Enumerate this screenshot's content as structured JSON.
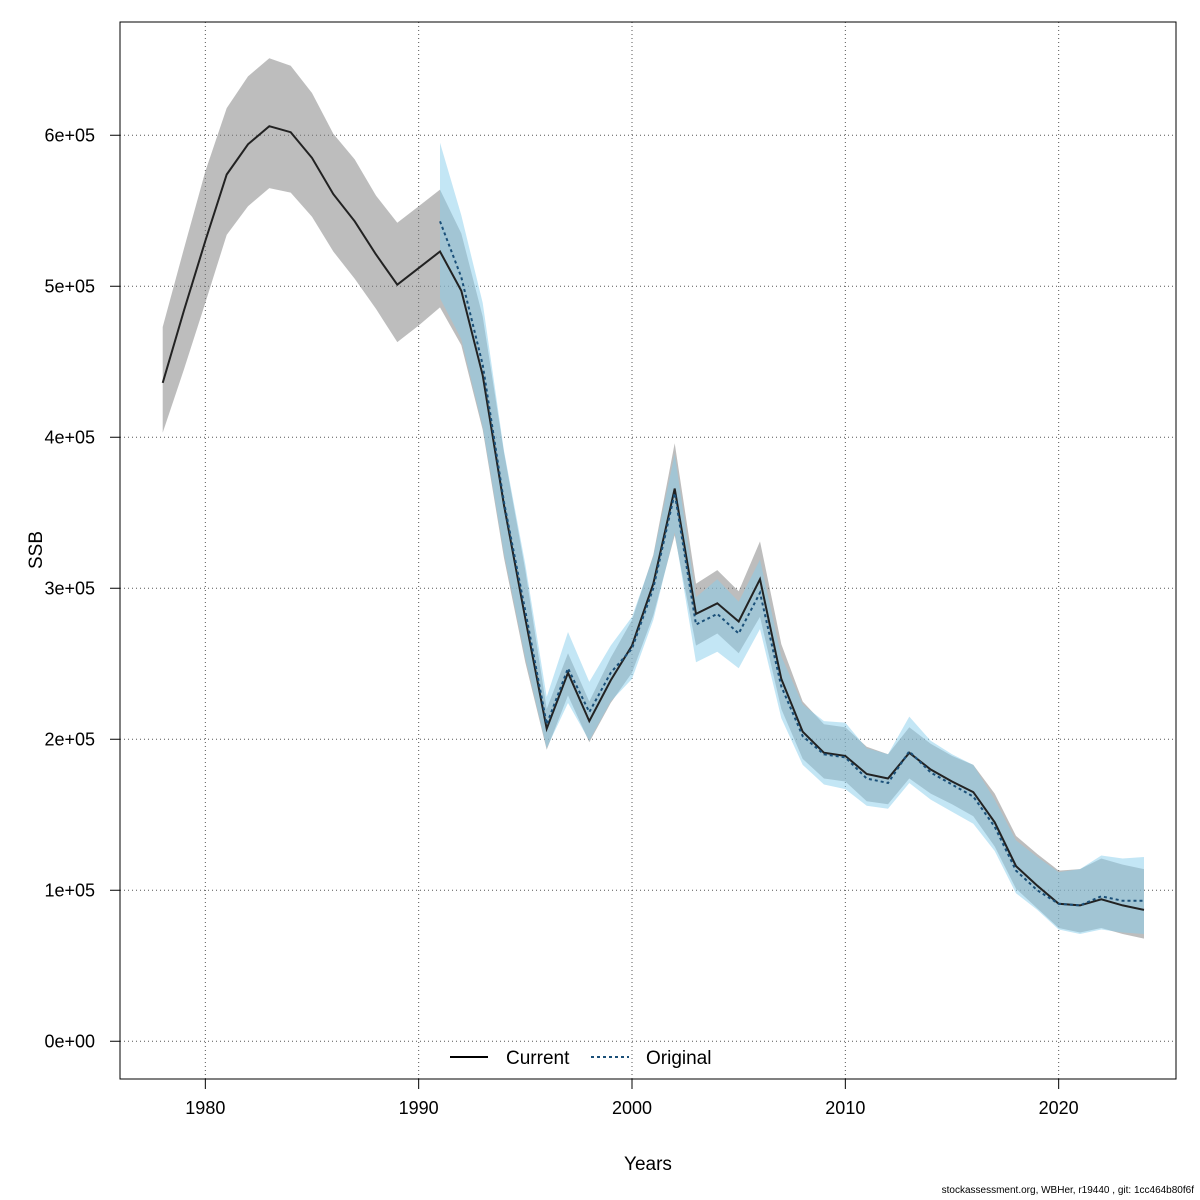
{
  "chart_data": {
    "type": "line",
    "xlabel": "Years",
    "ylabel": "SSB",
    "xlim": [
      1976,
      2025.5
    ],
    "ylim": [
      -25000,
      675000
    ],
    "x_ticks": [
      1980,
      1990,
      2000,
      2010,
      2020
    ],
    "y_ticks": [
      0,
      100000,
      200000,
      300000,
      400000,
      500000,
      600000
    ],
    "y_tick_labels": [
      "0e+00",
      "1e+05",
      "2e+05",
      "3e+05",
      "4e+05",
      "5e+05",
      "6e+05"
    ],
    "grid": true,
    "legend": {
      "position": "bottom-center",
      "entries": [
        "Current",
        "Original"
      ]
    },
    "colors": {
      "current_line": "#000000",
      "current_band": "#808080",
      "original_line": "#1a4f78",
      "original_band": "#87ceeb"
    },
    "series": [
      {
        "name": "Current",
        "style": "solid",
        "x": [
          1978,
          1979,
          1980,
          1981,
          1982,
          1983,
          1984,
          1985,
          1986,
          1987,
          1988,
          1989,
          1990,
          1991,
          1992,
          1993,
          1994,
          1995,
          1996,
          1997,
          1998,
          1999,
          2000,
          2001,
          2002,
          2003,
          2004,
          2005,
          2006,
          2007,
          2008,
          2009,
          2010,
          2011,
          2012,
          2013,
          2014,
          2015,
          2016,
          2017,
          2018,
          2019,
          2020,
          2021,
          2022,
          2023,
          2024
        ],
        "y": [
          436000,
          484000,
          530000,
          574000,
          594000,
          606000,
          602000,
          585000,
          561000,
          543000,
          521000,
          501000,
          512000,
          523000,
          497000,
          441000,
          355000,
          280000,
          207000,
          244000,
          212000,
          239000,
          262000,
          303000,
          366000,
          283000,
          290000,
          278000,
          306000,
          240000,
          205000,
          191000,
          189000,
          177000,
          174000,
          191000,
          180000,
          172000,
          165000,
          145000,
          116000,
          103000,
          91000,
          90000,
          94000,
          90000,
          87000
        ],
        "upper": [
          473000,
          525000,
          576000,
          618000,
          639000,
          651000,
          646000,
          628000,
          601000,
          584000,
          560000,
          542000,
          553000,
          564000,
          535000,
          480000,
          390000,
          312000,
          220000,
          257000,
          225000,
          254000,
          279000,
          322000,
          396000,
          303000,
          312000,
          298000,
          331000,
          263000,
          225000,
          210000,
          208000,
          195000,
          190000,
          208000,
          197000,
          189000,
          183000,
          164000,
          136000,
          124000,
          113000,
          114000,
          121000,
          117000,
          114000
        ],
        "lower": [
          403000,
          445000,
          489000,
          534000,
          553000,
          565000,
          562000,
          546000,
          523000,
          505000,
          485000,
          463000,
          474000,
          486000,
          461000,
          405000,
          320000,
          251000,
          193000,
          229000,
          198000,
          224000,
          244000,
          282000,
          335000,
          262000,
          270000,
          257000,
          281000,
          220000,
          187000,
          174000,
          172000,
          159000,
          157000,
          174000,
          164000,
          157000,
          149000,
          129000,
          101000,
          88000,
          75000,
          72000,
          75000,
          71000,
          68000
        ]
      },
      {
        "name": "Original",
        "style": "dashed",
        "x": [
          1991,
          1992,
          1993,
          1994,
          1995,
          1996,
          1997,
          1998,
          1999,
          2000,
          2001,
          2002,
          2003,
          2004,
          2005,
          2006,
          2007,
          2008,
          2009,
          2010,
          2011,
          2012,
          2013,
          2014,
          2015,
          2016,
          2017,
          2018,
          2019,
          2020,
          2021,
          2022,
          2023,
          2024
        ],
        "y": [
          543000,
          506000,
          448000,
          357000,
          285000,
          210000,
          247000,
          218000,
          244000,
          260000,
          300000,
          363000,
          276000,
          283000,
          270000,
          297000,
          235000,
          202000,
          190000,
          188000,
          174000,
          171000,
          192000,
          178000,
          170000,
          162000,
          142000,
          113000,
          100000,
          91000,
          90000,
          96000,
          93000,
          93000
        ],
        "upper": [
          595000,
          547000,
          489000,
          391000,
          316000,
          228000,
          271000,
          238000,
          262000,
          281000,
          321000,
          389000,
          294000,
          306000,
          291000,
          319000,
          255000,
          223000,
          212000,
          211000,
          194000,
          190000,
          215000,
          199000,
          190000,
          183000,
          160000,
          133000,
          122000,
          112000,
          114000,
          123000,
          121000,
          122000
        ],
        "lower": [
          492000,
          465000,
          407000,
          323000,
          254000,
          194000,
          224000,
          199000,
          225000,
          240000,
          279000,
          337000,
          251000,
          258000,
          247000,
          273000,
          214000,
          183000,
          170000,
          167000,
          156000,
          154000,
          171000,
          160000,
          152000,
          144000,
          126000,
          98000,
          87000,
          74000,
          71000,
          74000,
          72000,
          71000
        ]
      }
    ]
  },
  "footer": {
    "text": "stockassessment.org, WBHer, r19440 , git: 1cc464b80f6f"
  }
}
